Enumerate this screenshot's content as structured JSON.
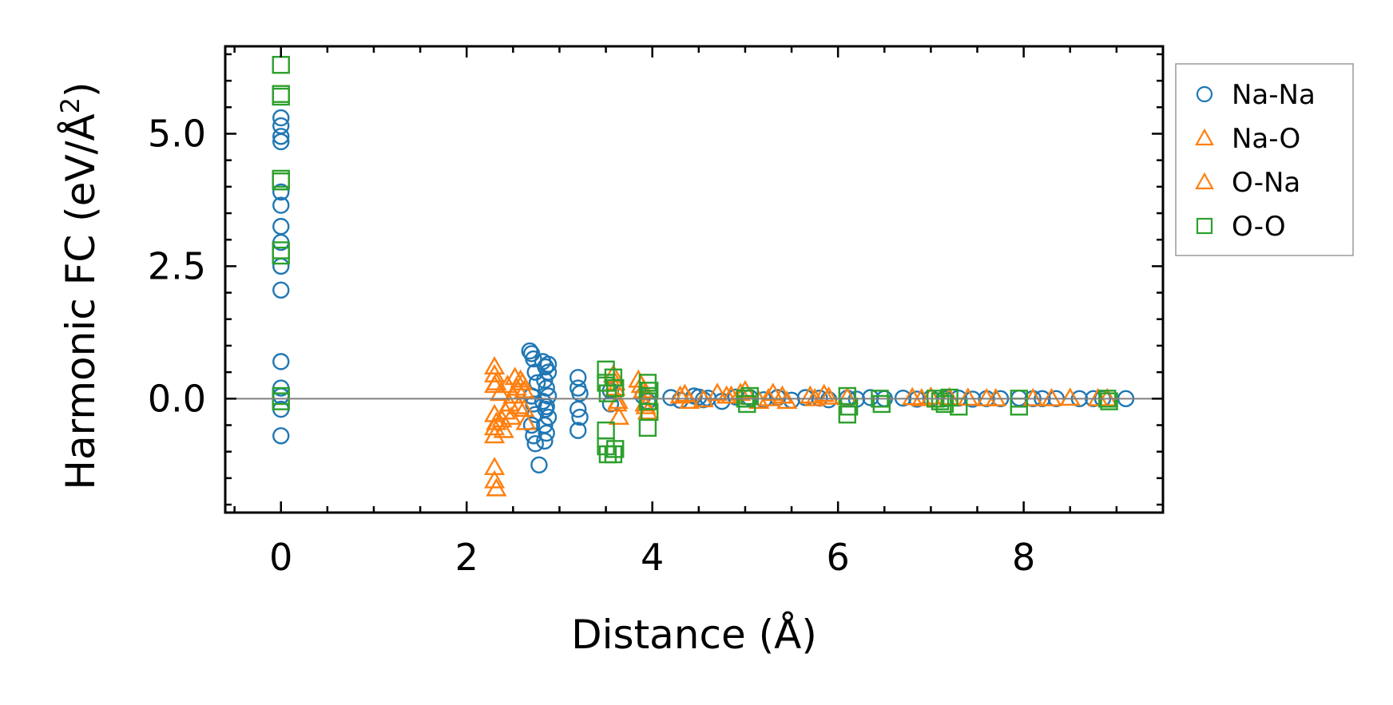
{
  "chart_data": {
    "type": "scatter",
    "xlabel": "Distance (Å)",
    "ylabel": "Harmonic FC (eV/Å²)",
    "ylabel_parts": {
      "main": "Harmonic FC (eV/Å",
      "sup": "2",
      "close": ")"
    },
    "xlim": [
      -0.6,
      9.5
    ],
    "ylim": [
      -2.15,
      6.65
    ],
    "xticks": [
      0,
      2,
      4,
      6,
      8
    ],
    "xtick_labels": [
      "0",
      "2",
      "4",
      "6",
      "8"
    ],
    "yticks": [
      0.0,
      2.5,
      5.0
    ],
    "ytick_labels": [
      "0.0",
      "2.5",
      "5.0"
    ],
    "zero_line": true,
    "legend_position": "outside-right",
    "series": [
      {
        "name": "Na-Na",
        "marker": "circle",
        "color": "#1f77b4",
        "points": [
          [
            0,
            5.3
          ],
          [
            0,
            5.15
          ],
          [
            0,
            4.95
          ],
          [
            0,
            4.85
          ],
          [
            0,
            3.9
          ],
          [
            0,
            3.65
          ],
          [
            0,
            3.25
          ],
          [
            0,
            2.95
          ],
          [
            0,
            2.5
          ],
          [
            0,
            2.05
          ],
          [
            0,
            0.7
          ],
          [
            0,
            0.2
          ],
          [
            0,
            0.05
          ],
          [
            0,
            -0.2
          ],
          [
            0,
            -0.7
          ],
          [
            2.68,
            0.9
          ],
          [
            2.7,
            0.85
          ],
          [
            2.72,
            0.75
          ],
          [
            2.74,
            0.5
          ],
          [
            2.76,
            0.3
          ],
          [
            2.7,
            0.05
          ],
          [
            2.72,
            -0.1
          ],
          [
            2.74,
            -0.3
          ],
          [
            2.7,
            -0.5
          ],
          [
            2.72,
            -0.7
          ],
          [
            2.74,
            -0.85
          ],
          [
            2.78,
            -1.25
          ],
          [
            2.82,
            0.7
          ],
          [
            2.85,
            0.6
          ],
          [
            2.88,
            0.5
          ],
          [
            2.84,
            0.35
          ],
          [
            2.86,
            0.2
          ],
          [
            2.88,
            0.05
          ],
          [
            2.82,
            -0.05
          ],
          [
            2.85,
            -0.2
          ],
          [
            2.88,
            -0.35
          ],
          [
            2.84,
            -0.5
          ],
          [
            2.86,
            -0.65
          ],
          [
            2.84,
            -0.8
          ],
          [
            2.88,
            0.65
          ],
          [
            2.86,
            -0.15
          ],
          [
            3.2,
            0.4
          ],
          [
            3.2,
            0.2
          ],
          [
            3.22,
            0.1
          ],
          [
            3.2,
            -0.2
          ],
          [
            3.22,
            -0.35
          ],
          [
            3.2,
            -0.6
          ],
          [
            3.55,
            0.15
          ],
          [
            3.55,
            -0.1
          ],
          [
            3.9,
            0.05
          ],
          [
            3.95,
            -0.05
          ],
          [
            4.2,
            0.02
          ],
          [
            4.3,
            -0.03
          ],
          [
            4.45,
            0.05
          ],
          [
            4.5,
            0.03
          ],
          [
            4.55,
            -0.02
          ],
          [
            4.6,
            0.01
          ],
          [
            4.75,
            -0.05
          ],
          [
            4.9,
            0.03
          ],
          [
            5.05,
            0.02
          ],
          [
            5.2,
            -0.02
          ],
          [
            5.35,
            0.02
          ],
          [
            5.5,
            -0.03
          ],
          [
            5.65,
            0.02
          ],
          [
            5.8,
            0.01
          ],
          [
            5.9,
            -0.02
          ],
          [
            6.1,
            0.01
          ],
          [
            6.2,
            -0.01
          ],
          [
            6.35,
            0.02
          ],
          [
            6.5,
            0.0
          ],
          [
            6.7,
            0.01
          ],
          [
            6.85,
            -0.01
          ],
          [
            7.0,
            0.01
          ],
          [
            7.15,
            0.0
          ],
          [
            7.3,
            0.01
          ],
          [
            7.45,
            -0.01
          ],
          [
            7.6,
            0.0
          ],
          [
            7.75,
            0.0
          ],
          [
            7.95,
            0.01
          ],
          [
            8.1,
            0.0
          ],
          [
            8.2,
            0.0
          ],
          [
            8.35,
            0.0
          ],
          [
            8.6,
            0.0
          ],
          [
            8.75,
            0.0
          ],
          [
            8.85,
            0.0
          ],
          [
            9.1,
            0.0
          ]
        ]
      },
      {
        "name": "Na-O",
        "marker": "triangle",
        "color": "#ff7f0e",
        "points": [
          [
            2.3,
            0.6
          ],
          [
            2.3,
            0.45
          ],
          [
            2.3,
            0.25
          ],
          [
            2.3,
            -0.3
          ],
          [
            2.3,
            -0.55
          ],
          [
            2.3,
            -0.7
          ],
          [
            2.3,
            -1.3
          ],
          [
            2.3,
            -1.55
          ],
          [
            2.32,
            -1.7
          ],
          [
            2.38,
            -0.4
          ],
          [
            2.42,
            -0.25
          ],
          [
            2.46,
            -0.1
          ],
          [
            2.5,
            0.05
          ],
          [
            2.54,
            0.2
          ],
          [
            2.58,
            0.35
          ],
          [
            2.62,
            0.15
          ],
          [
            2.62,
            -0.2
          ],
          [
            3.58,
            0.45
          ],
          [
            3.6,
            0.2
          ],
          [
            3.62,
            -0.1
          ],
          [
            3.64,
            -0.35
          ],
          [
            3.85,
            0.35
          ],
          [
            3.9,
            0.15
          ],
          [
            3.92,
            -0.1
          ],
          [
            3.95,
            -0.25
          ],
          [
            4.3,
            0.05
          ],
          [
            4.4,
            -0.05
          ],
          [
            4.7,
            0.1
          ],
          [
            4.85,
            0.05
          ],
          [
            5.0,
            0.15
          ],
          [
            5.15,
            -0.05
          ],
          [
            5.3,
            0.1
          ],
          [
            5.45,
            -0.05
          ],
          [
            5.7,
            0.05
          ],
          [
            5.85,
            0.08
          ],
          [
            6.1,
            0.02
          ],
          [
            6.8,
            0.02
          ],
          [
            7.0,
            0.03
          ],
          [
            7.4,
            0.01
          ],
          [
            7.7,
            0.0
          ],
          [
            8.1,
            0.0
          ],
          [
            8.5,
            0.01
          ],
          [
            8.8,
            0.0
          ]
        ]
      },
      {
        "name": "O-Na",
        "marker": "triangle",
        "color": "#ff7f0e",
        "points": [
          [
            2.32,
            0.3
          ],
          [
            2.32,
            -0.45
          ],
          [
            2.36,
            0.1
          ],
          [
            2.4,
            -0.6
          ],
          [
            2.44,
            0.25
          ],
          [
            2.48,
            -0.35
          ],
          [
            2.52,
            0.4
          ],
          [
            2.56,
            -0.15
          ],
          [
            2.6,
            0.3
          ],
          [
            2.64,
            -0.45
          ],
          [
            3.6,
            0.3
          ],
          [
            3.63,
            -0.05
          ],
          [
            3.88,
            0.25
          ],
          [
            3.93,
            -0.15
          ],
          [
            4.35,
            0.08
          ],
          [
            4.55,
            -0.02
          ],
          [
            4.8,
            0.05
          ],
          [
            4.95,
            0.1
          ],
          [
            5.25,
            0.0
          ],
          [
            5.4,
            0.05
          ],
          [
            5.75,
            0.0
          ],
          [
            5.9,
            0.03
          ],
          [
            6.9,
            0.0
          ],
          [
            7.2,
            0.02
          ],
          [
            7.6,
            0.0
          ],
          [
            8.3,
            0.0
          ],
          [
            8.9,
            0.0
          ]
        ]
      },
      {
        "name": "O-O",
        "marker": "square",
        "color": "#2ca02c",
        "points": [
          [
            0,
            6.3
          ],
          [
            0,
            5.75
          ],
          [
            0,
            5.7
          ],
          [
            0,
            4.15
          ],
          [
            0,
            4.1
          ],
          [
            0,
            2.8
          ],
          [
            0,
            2.7
          ],
          [
            0,
            0.05
          ],
          [
            0,
            -0.05
          ],
          [
            3.5,
            0.55
          ],
          [
            3.5,
            0.3
          ],
          [
            3.52,
            0.1
          ],
          [
            3.5,
            -0.6
          ],
          [
            3.5,
            -0.9
          ],
          [
            3.52,
            -1.05
          ],
          [
            3.58,
            -1.05
          ],
          [
            3.6,
            -0.95
          ],
          [
            3.58,
            0.4
          ],
          [
            3.6,
            0.2
          ],
          [
            3.95,
            0.3
          ],
          [
            3.97,
            0.15
          ],
          [
            3.95,
            -0.05
          ],
          [
            3.97,
            -0.25
          ],
          [
            3.95,
            -0.55
          ],
          [
            3.96,
            0.05
          ],
          [
            5.0,
            0.0
          ],
          [
            5.02,
            -0.1
          ],
          [
            5.05,
            0.05
          ],
          [
            6.1,
            0.05
          ],
          [
            6.12,
            -0.15
          ],
          [
            6.1,
            -0.3
          ],
          [
            6.45,
            0.0
          ],
          [
            6.47,
            -0.1
          ],
          [
            7.05,
            0.0
          ],
          [
            7.1,
            -0.05
          ],
          [
            7.15,
            -0.1
          ],
          [
            7.2,
            0.02
          ],
          [
            7.3,
            -0.15
          ],
          [
            7.95,
            0.0
          ],
          [
            7.95,
            -0.15
          ],
          [
            8.9,
            0.0
          ],
          [
            8.92,
            -0.05
          ]
        ]
      }
    ]
  }
}
